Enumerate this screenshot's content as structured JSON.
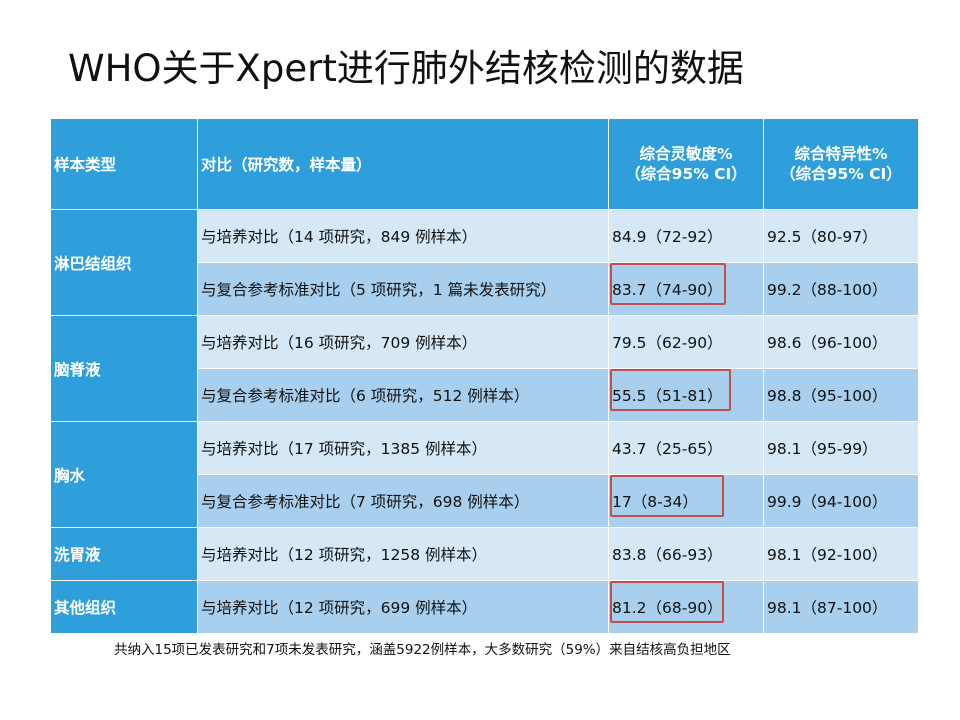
{
  "title": "WHO关于Xpert进行肺外结核检测的数据",
  "table": {
    "headers": {
      "sample_type": "样本类型",
      "comparison": "对比（研究数，样本量）",
      "sensitivity_line1": "综合灵敏度%",
      "sensitivity_line2": "（综合95% CI）",
      "specificity_line1": "综合特异性%",
      "specificity_line2": "（综合95% CI）"
    },
    "groups": [
      {
        "type": "淋巴结组织",
        "rows": [
          {
            "comparison": "与培养对比（14 项研究，849 例样本）",
            "sensitivity": "84.9（72-92）",
            "specificity": "92.5（80-97）",
            "highlighted": false
          },
          {
            "comparison": "与复合参考标准对比（5 项研究，1 篇未发表研究）",
            "sensitivity": "83.7（74-90）",
            "specificity": "99.2（88-100）",
            "highlighted": true
          }
        ]
      },
      {
        "type": "脑脊液",
        "rows": [
          {
            "comparison": "与培养对比（16 项研究，709 例样本）",
            "sensitivity": "79.5（62-90）",
            "specificity": "98.6（96-100）",
            "highlighted": false
          },
          {
            "comparison": "与复合参考标准对比（6 项研究，512 例样本）",
            "sensitivity": "55.5（51-81）",
            "specificity": "98.8（95-100）",
            "highlighted": true
          }
        ]
      },
      {
        "type": "胸水",
        "rows": [
          {
            "comparison": "与培养对比（17 项研究，1385 例样本）",
            "sensitivity": "43.7（25-65）",
            "specificity": "98.1（95-99）",
            "highlighted": false
          },
          {
            "comparison": "与复合参考标准对比（7 项研究，698 例样本）",
            "sensitivity": "17（8-34）",
            "specificity": "99.9（94-100）",
            "highlighted": true
          }
        ]
      },
      {
        "type": "洗胃液",
        "rows": [
          {
            "comparison": "与培养对比（12 项研究，1258 例样本）",
            "sensitivity": "83.8（66-93）",
            "specificity": "98.1（92-100）",
            "highlighted": false
          }
        ]
      },
      {
        "type": "其他组织",
        "rows": [
          {
            "comparison": "与培养对比（12 项研究，699 例样本）",
            "sensitivity": "81.2（68-90）",
            "specificity": "98.1（87-100）",
            "highlighted": true
          }
        ]
      }
    ]
  },
  "footnote": "共纳入15项已发表研究和7项未发表研究，涵盖5922例样本，大多数研究（59%）来自结核高负担地区",
  "colors": {
    "header_bg": "#2f9fdc",
    "row_light": "#d6e7f6",
    "row_dark": "#a9cfee",
    "highlight_box": "#c0504d"
  }
}
